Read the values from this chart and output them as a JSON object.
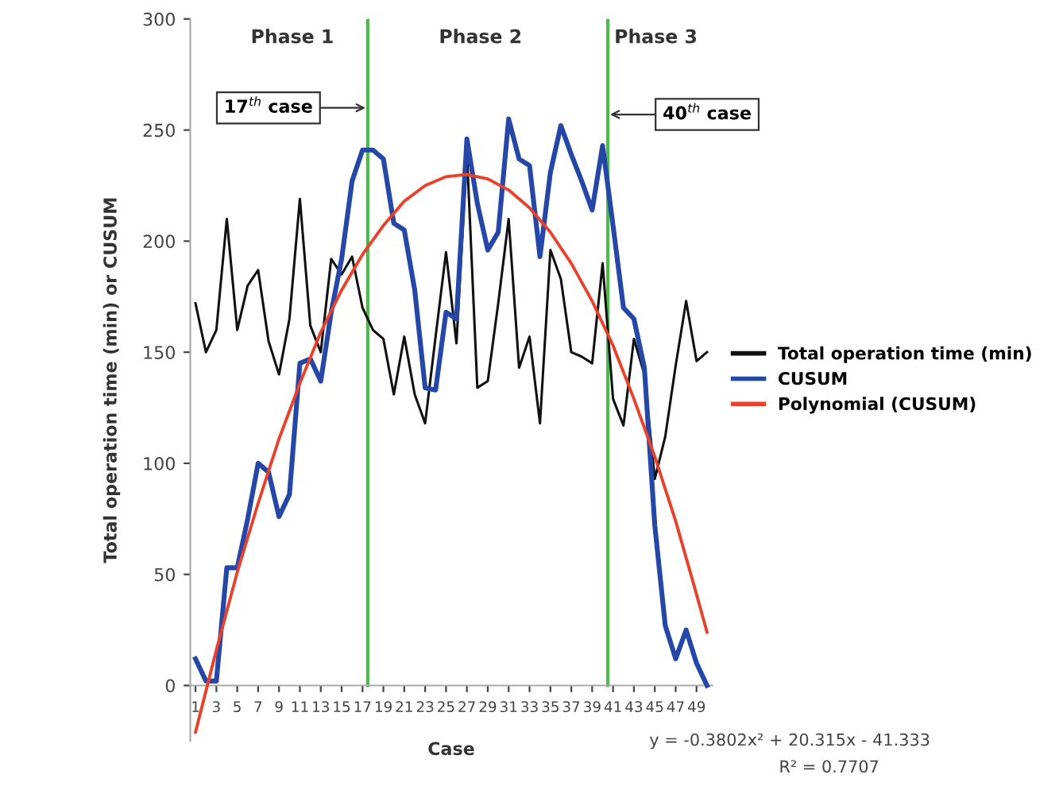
{
  "chart_data": {
    "type": "line",
    "xlabel": "Case",
    "ylabel": "Total operation time (min) or CUSUM",
    "x": [
      1,
      2,
      3,
      4,
      5,
      6,
      7,
      8,
      9,
      10,
      11,
      12,
      13,
      14,
      15,
      16,
      17,
      18,
      19,
      20,
      21,
      22,
      23,
      24,
      25,
      26,
      27,
      28,
      29,
      30,
      31,
      32,
      33,
      34,
      35,
      36,
      37,
      38,
      39,
      40,
      41,
      42,
      43,
      44,
      45,
      46,
      47,
      48,
      49,
      50
    ],
    "series": [
      {
        "name": "Total operation time (min)",
        "color": "#111111",
        "values": [
          172,
          150,
          160,
          210,
          160,
          180,
          187,
          155,
          140,
          165,
          219,
          162,
          150,
          192,
          185,
          193,
          170,
          160,
          156,
          131,
          157,
          131,
          118,
          157,
          195,
          154,
          240,
          134,
          137,
          172,
          210,
          143,
          157,
          118,
          196,
          183,
          150,
          148,
          145,
          190,
          129,
          117,
          156,
          140,
          93,
          112,
          144,
          173,
          146,
          150
        ]
      },
      {
        "name": "CUSUM",
        "color": "#2447a8",
        "values": [
          12,
          2,
          2,
          53,
          53,
          75,
          100,
          96,
          76,
          86,
          145,
          147,
          137,
          168,
          192,
          227,
          241,
          241,
          237,
          208,
          205,
          178,
          134,
          133,
          168,
          165,
          246,
          217,
          196,
          204,
          255,
          237,
          234,
          193,
          231,
          252,
          239,
          227,
          214,
          243,
          207,
          170,
          165,
          143,
          72,
          27,
          12,
          25,
          10,
          0
        ]
      },
      {
        "name": "Polynomial (CUSUM)",
        "color": "#e8412c",
        "type": "line",
        "x": [
          1,
          3,
          5,
          7,
          9,
          11,
          13,
          15,
          17,
          19,
          21,
          23,
          25,
          27,
          29,
          31,
          33,
          35,
          37,
          39,
          41,
          43,
          45,
          47,
          49,
          50
        ],
        "values": [
          -21,
          16,
          51,
          82,
          111,
          136,
          159,
          178,
          194,
          207,
          218,
          225,
          229,
          230,
          228,
          223,
          215,
          204,
          190,
          173,
          153,
          129,
          103,
          74,
          41,
          24
        ]
      }
    ],
    "xlim": [
      0.5,
      50.5
    ],
    "xticks": [
      1,
      3,
      5,
      7,
      9,
      11,
      13,
      15,
      17,
      19,
      21,
      23,
      25,
      27,
      29,
      31,
      33,
      35,
      37,
      39,
      41,
      43,
      45,
      47,
      49
    ],
    "ylim": [
      -25,
      300
    ],
    "yticks": [
      0,
      50,
      100,
      150,
      200,
      250,
      300
    ],
    "ref_lines": [
      {
        "axis": "x",
        "value": 17.5,
        "color": "#4cbb4c"
      },
      {
        "axis": "x",
        "value": 40.5,
        "color": "#4cbb4c"
      }
    ],
    "annotations": [
      "Phase 1",
      "Phase 2",
      "Phase 3",
      {
        "text": "17$^{th}$ case",
        "x": 17.5,
        "y": 260
      },
      {
        "text": "40$^{th}$ case",
        "x": 40.5,
        "y": 257
      },
      "y = -0.3802x² + 20.315x - 41.333",
      "R² = 0.7707"
    ],
    "legend": "right",
    "grid": false,
    "marker": "none",
    "line_style": "solid"
  }
}
